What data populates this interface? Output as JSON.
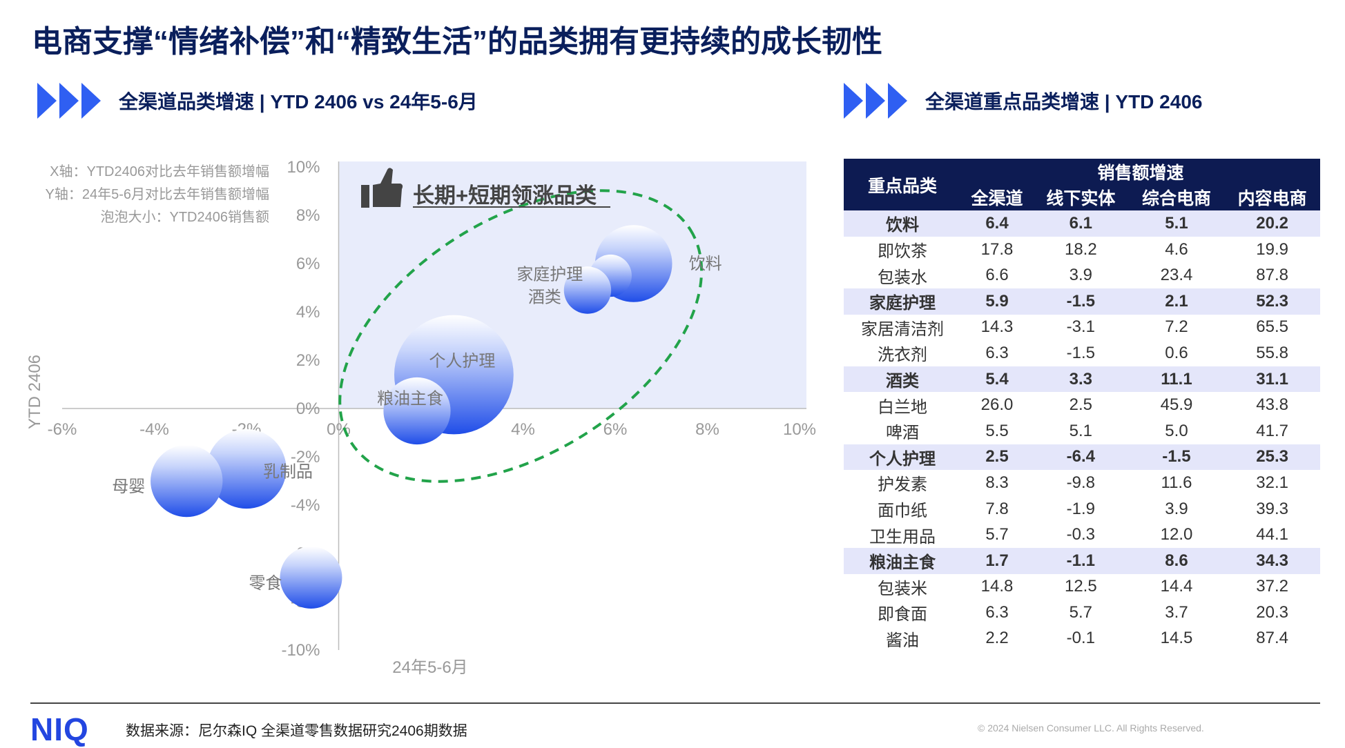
{
  "title": "电商支撑“情绪补偿”和“精致生活”的品类拥有更持续的成长韧性",
  "left_section": {
    "label": "全渠道品类增速 | YTD 2406 vs 24年5-6月"
  },
  "right_section": {
    "label": "全渠道重点品类增速 | YTD 2406"
  },
  "axis_notes": [
    "X轴：YTD2406对比去年销售额增幅",
    "Y轴：24年5-6月对比去年销售额增幅",
    "泡泡大小：YTD2406销售额"
  ],
  "highlight_label": "长期+短期领涨品类",
  "icon": "thumbs-up-icon",
  "colors": {
    "accent": "#2f5ff2",
    "header_bg": "#0d1b52",
    "group_row_bg": "#e4e6fa",
    "highlight_bg": "#e8ecfb",
    "ellipse": "#22a34a",
    "bubble_top": "#ffffff",
    "bubble_bottom": "#1f4de8"
  },
  "chart_data": {
    "type": "scatter",
    "xlim": [
      -6,
      10
    ],
    "ylim": [
      -10,
      10
    ],
    "xticks": [
      "-6%",
      "-4%",
      "-2%",
      "0%",
      "2%",
      "4%",
      "6%",
      "8%",
      "10%"
    ],
    "yticks": [
      "10%",
      "8%",
      "6%",
      "4%",
      "2%",
      "0%",
      "-2%",
      "-4%",
      "-6%",
      "-8%",
      "-10%"
    ],
    "ylabel": "YTD 2406",
    "xlabel": "24年5-6月",
    "points": [
      {
        "label": "饮料",
        "x": 6.4,
        "y": 6.0,
        "size": 1.55
      },
      {
        "label": "家庭护理",
        "x": 5.9,
        "y": 5.5,
        "size": 0.85
      },
      {
        "label": "酒类",
        "x": 5.4,
        "y": 4.9,
        "size": 0.95
      },
      {
        "label": "个人护理",
        "x": 2.5,
        "y": 1.4,
        "size": 2.4
      },
      {
        "label": "粮油主食",
        "x": 1.7,
        "y": -0.1,
        "size": 1.35
      },
      {
        "label": "乳制品",
        "x": -2.0,
        "y": -2.5,
        "size": 1.6
      },
      {
        "label": "母婴",
        "x": -3.3,
        "y": -3.0,
        "size": 1.45
      },
      {
        "label": "零食",
        "x": -0.6,
        "y": -7.0,
        "size": 1.25
      }
    ]
  },
  "table": {
    "header_category": "重点品类",
    "header_group": "销售额增速",
    "columns": [
      "全渠道",
      "线下实体",
      "综合电商",
      "内容电商"
    ],
    "rows": [
      {
        "name": "饮料",
        "group": true,
        "values": [
          "6.4",
          "6.1",
          "5.1",
          "20.2"
        ]
      },
      {
        "name": "即饮茶",
        "group": false,
        "values": [
          "17.8",
          "18.2",
          "4.6",
          "19.9"
        ]
      },
      {
        "name": "包装水",
        "group": false,
        "values": [
          "6.6",
          "3.9",
          "23.4",
          "87.8"
        ]
      },
      {
        "name": "家庭护理",
        "group": true,
        "values": [
          "5.9",
          "-1.5",
          "2.1",
          "52.3"
        ]
      },
      {
        "name": "家居清洁剂",
        "group": false,
        "values": [
          "14.3",
          "-3.1",
          "7.2",
          "65.5"
        ]
      },
      {
        "name": "洗衣剂",
        "group": false,
        "values": [
          "6.3",
          "-1.5",
          "0.6",
          "55.8"
        ]
      },
      {
        "name": "酒类",
        "group": true,
        "values": [
          "5.4",
          "3.3",
          "11.1",
          "31.1"
        ]
      },
      {
        "name": "白兰地",
        "group": false,
        "values": [
          "26.0",
          "2.5",
          "45.9",
          "43.8"
        ]
      },
      {
        "name": "啤酒",
        "group": false,
        "values": [
          "5.5",
          "5.1",
          "5.0",
          "41.7"
        ]
      },
      {
        "name": "个人护理",
        "group": true,
        "values": [
          "2.5",
          "-6.4",
          "-1.5",
          "25.3"
        ]
      },
      {
        "name": "护发素",
        "group": false,
        "values": [
          "8.3",
          "-9.8",
          "11.6",
          "32.1"
        ]
      },
      {
        "name": "面巾纸",
        "group": false,
        "values": [
          "7.8",
          "-1.9",
          "3.9",
          "39.3"
        ]
      },
      {
        "name": "卫生用品",
        "group": false,
        "values": [
          "5.7",
          "-0.3",
          "12.0",
          "44.1"
        ]
      },
      {
        "name": "粮油主食",
        "group": true,
        "values": [
          "1.7",
          "-1.1",
          "8.6",
          "34.3"
        ]
      },
      {
        "name": "包装米",
        "group": false,
        "values": [
          "14.8",
          "12.5",
          "14.4",
          "37.2"
        ]
      },
      {
        "name": "即食面",
        "group": false,
        "values": [
          "6.3",
          "5.7",
          "3.7",
          "20.3"
        ]
      },
      {
        "name": "酱油",
        "group": false,
        "values": [
          "2.2",
          "-0.1",
          "14.5",
          "87.4"
        ]
      }
    ]
  },
  "footer": {
    "logo": "NIQ",
    "source": "数据来源：尼尔森IQ 全渠道零售数据研究2406期数据",
    "copyright": "© 2024 Nielsen Consumer LLC. All Rights Reserved."
  }
}
